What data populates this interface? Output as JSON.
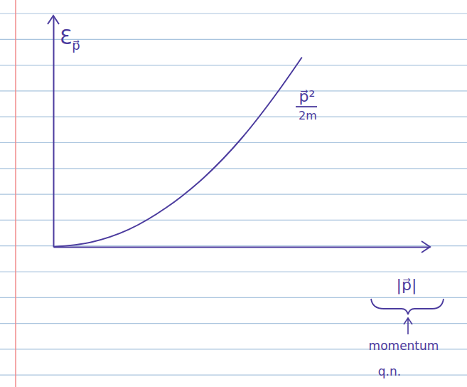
{
  "chart_data": {
    "type": "line",
    "y_label": "Ɛp⃗",
    "x_label": "|p⃗|",
    "annotations": [
      {
        "text": "p⃗²"
      },
      {
        "text": "2m"
      },
      {
        "text": "momentum"
      },
      {
        "text": "q.n."
      }
    ],
    "x": [
      0,
      0.1,
      0.2,
      0.3,
      0.4,
      0.5,
      0.6,
      0.66
    ],
    "series": [
      {
        "color": "#4b3b9e",
        "values": [
          0,
          0.02,
          0.075,
          0.17,
          0.3,
          0.47,
          0.68,
          0.82
        ]
      }
    ],
    "xlim": [
      0,
      1
    ],
    "ylim": [
      0,
      1
    ],
    "xticks": [],
    "yticks": [],
    "tick_labels": false,
    "grid": false
  }
}
